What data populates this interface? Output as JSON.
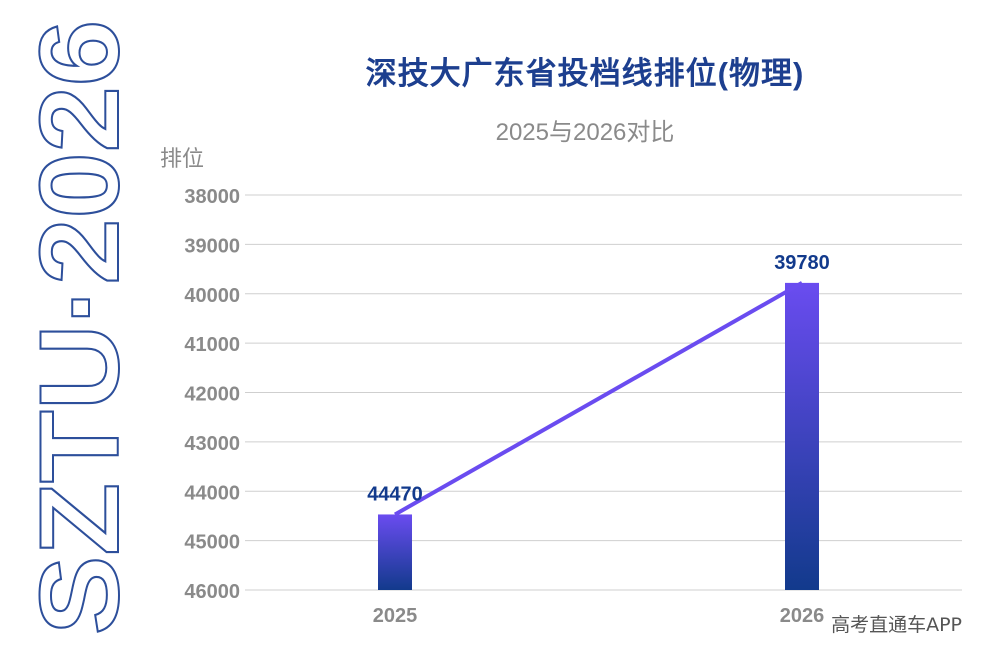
{
  "brand": {
    "text": "SZTU·2026"
  },
  "watermark": "高考直通车APP",
  "chart_data": {
    "type": "bar",
    "title": "深技大广东省投档线排位(物理)",
    "subtitle": "2025与2026对比",
    "ylabel": "排位",
    "xlabel": "",
    "categories": [
      "2025",
      "2026"
    ],
    "values": [
      44470,
      39780
    ],
    "data_labels": [
      "44470",
      "39780"
    ],
    "ylim": [
      46000,
      38000
    ],
    "y_inverted": true,
    "yticks": [
      "38000",
      "39000",
      "40000",
      "41000",
      "42000",
      "43000",
      "44000",
      "45000",
      "46000"
    ],
    "overlay_line": true,
    "grid": true,
    "colors": {
      "bar_top": "#6a4cf0",
      "bar_bottom": "#123a8c",
      "line": "#6a4cf0",
      "label": "#123a8c",
      "tick": "#8a8a8a",
      "grid": "#cfcfcf"
    }
  }
}
